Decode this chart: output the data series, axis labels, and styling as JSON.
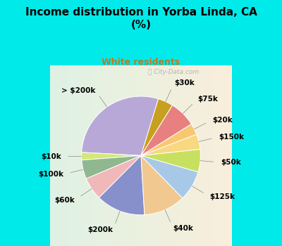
{
  "title": "Income distribution in Yorba Linda, CA\n(%)",
  "subtitle": "White residents",
  "title_color": "#000000",
  "subtitle_color": "#c07820",
  "background_top": "#00eaea",
  "background_chart_left": "#c8e8d8",
  "background_chart_right": "#e8f4f0",
  "labels": [
    "> $200k",
    "$10k",
    "$100k",
    "$60k",
    "$200k",
    "$40k",
    "$125k",
    "$50k",
    "$150k",
    "$20k",
    "$75k",
    "$30k"
  ],
  "values": [
    28,
    2,
    5,
    6,
    13,
    11,
    8,
    6,
    4,
    3,
    7,
    4
  ],
  "colors": [
    "#b8a8d8",
    "#d4e878",
    "#90b890",
    "#f0b8b8",
    "#8890cc",
    "#f0c890",
    "#a8c8e8",
    "#c8e060",
    "#f8d880",
    "#f8c870",
    "#e88080",
    "#c8a020"
  ],
  "label_fontsize": 7.5,
  "startangle": 73
}
